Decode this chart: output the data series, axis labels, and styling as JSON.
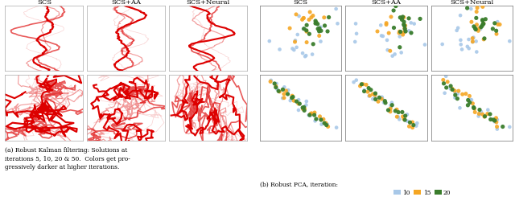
{
  "title_left": "(a) Robust Kalman filtering: Solutions at\niterations 5, 10, 20 & 50.  Colors get pro-\ngressively darker at higher iterations.",
  "title_right": "(b) Robust PCA, iteration:",
  "col_titles": [
    "SCS",
    "SCS+AA",
    "SCS+Neural"
  ],
  "red_alphas": [
    0.18,
    0.38,
    0.65,
    1.0
  ],
  "red_color": "#dd0000",
  "scatter_colors_hex": [
    "#a8c8e8",
    "#f5a623",
    "#3a7d2c"
  ],
  "legend_labels": [
    "10",
    "15",
    "20"
  ],
  "background": "#ffffff"
}
